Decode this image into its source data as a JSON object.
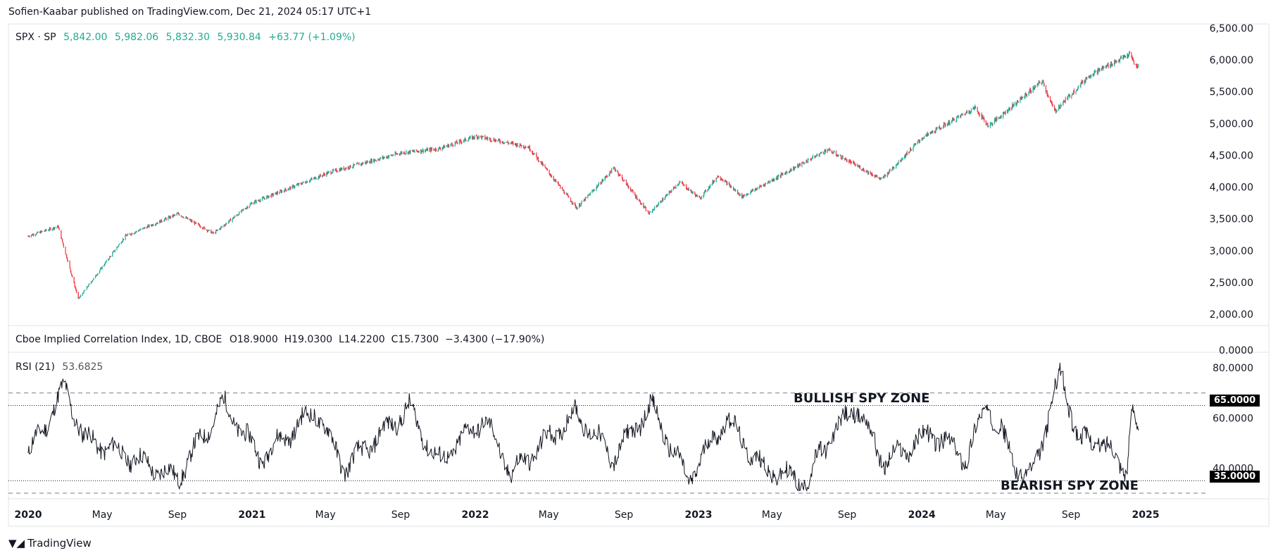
{
  "attribution": "Sofien-Kaabar published on TradingView.com, Dec 21, 2024 05:17 UTC+1",
  "main_legend": {
    "symbol": "SPX · SP",
    "open": "5,842.00",
    "high": "5,982.06",
    "low": "5,832.30",
    "close": "5,930.84",
    "change": "+63.77 (+1.09%)"
  },
  "indicator_legend": {
    "name": "Cboe Implied Correlation Index, 1D, CBOE",
    "values": "O18.9000  H19.0300  L14.2200  C15.7300  −3.4300 (−17.90%)"
  },
  "rsi_legend": {
    "name": "RSI (21)",
    "value": "53.6825"
  },
  "zones": {
    "bullish": "BULLISH SPY ZONE",
    "bearish": "BEARISH SPY ZONE"
  },
  "levels": {
    "upper": "65.0000",
    "lower": "35.0000"
  },
  "logo": "TradingView",
  "colors": {
    "up": "#22ab94",
    "down": "#f23645",
    "line": "#131722"
  },
  "chart_data": [
    {
      "type": "candlestick",
      "series_name": "SPX",
      "y_ticks": [
        "6,500.00",
        "6,000.00",
        "5,500.00",
        "5,000.00",
        "4,500.00",
        "4,000.00",
        "3,500.00",
        "3,000.00",
        "2,500.00",
        "2,000.00"
      ],
      "ylim": [
        1900,
        6500
      ],
      "x": [
        "2020-01-01",
        "2020-02-19",
        "2020-03-23",
        "2020-06-08",
        "2020-09-02",
        "2020-10-30",
        "2021-01-01",
        "2021-05-07",
        "2021-09-02",
        "2021-11-01",
        "2022-01-03",
        "2022-03-29",
        "2022-06-16",
        "2022-08-16",
        "2022-10-12",
        "2022-12-01",
        "2023-01-03",
        "2023-02-02",
        "2023-03-13",
        "2023-07-31",
        "2023-10-27",
        "2024-01-01",
        "2024-03-28",
        "2024-04-19",
        "2024-07-16",
        "2024-08-05",
        "2024-10-01",
        "2024-12-06",
        "2024-12-18",
        "2024-12-20"
      ],
      "close": [
        3230,
        3380,
        2240,
        3230,
        3580,
        3270,
        3750,
        4230,
        4540,
        4600,
        4800,
        4630,
        3670,
        4300,
        3580,
        4080,
        3820,
        4180,
        3850,
        4590,
        4120,
        4770,
        5250,
        4960,
        5670,
        5190,
        5760,
        6090,
        5870,
        5930
      ]
    },
    {
      "type": "line",
      "series_name": "RSI (21)",
      "y_ticks": [
        "80.0000",
        "60.0000",
        "40.0000"
      ],
      "ylim": [
        30,
        84
      ],
      "levels": [
        35,
        65
      ],
      "bands": [
        30,
        70
      ],
      "x": [
        "2020-01-01",
        "2020-03-01",
        "2020-04-01",
        "2020-06-01",
        "2020-09-01",
        "2020-11-15",
        "2021-01-15",
        "2021-04-15",
        "2021-06-01",
        "2021-09-15",
        "2021-11-01",
        "2022-01-15",
        "2022-03-01",
        "2022-06-15",
        "2022-08-15",
        "2022-10-15",
        "2022-12-15",
        "2023-02-15",
        "2023-04-15",
        "2023-06-30",
        "2023-07-20",
        "2023-09-15",
        "2023-11-01",
        "2024-01-15",
        "2024-03-15",
        "2024-04-15",
        "2024-06-15",
        "2024-07-01",
        "2024-08-15",
        "2024-09-15",
        "2024-10-15",
        "2024-12-01",
        "2024-12-10",
        "2024-12-20"
      ],
      "values": [
        45,
        72,
        52,
        46,
        36,
        66,
        44,
        63,
        40,
        64,
        42,
        60,
        38,
        62,
        44,
        65,
        35,
        60,
        40,
        34,
        47,
        65,
        42,
        54,
        44,
        66,
        36,
        38,
        78,
        50,
        52,
        40,
        64,
        53.7
      ]
    }
  ],
  "x_ticks": [
    {
      "label": "2020",
      "date": "2020-01-01",
      "bold": true
    },
    {
      "label": "May",
      "date": "2020-05-01",
      "bold": false
    },
    {
      "label": "Sep",
      "date": "2020-09-01",
      "bold": false
    },
    {
      "label": "2021",
      "date": "2021-01-01",
      "bold": true
    },
    {
      "label": "May",
      "date": "2021-05-01",
      "bold": false
    },
    {
      "label": "Sep",
      "date": "2021-09-01",
      "bold": false
    },
    {
      "label": "2022",
      "date": "2022-01-01",
      "bold": true
    },
    {
      "label": "May",
      "date": "2022-05-01",
      "bold": false
    },
    {
      "label": "Sep",
      "date": "2022-09-01",
      "bold": false
    },
    {
      "label": "2023",
      "date": "2023-01-01",
      "bold": true
    },
    {
      "label": "May",
      "date": "2023-05-01",
      "bold": false
    },
    {
      "label": "Sep",
      "date": "2023-09-01",
      "bold": false
    },
    {
      "label": "2024",
      "date": "2024-01-01",
      "bold": true
    },
    {
      "label": "May",
      "date": "2024-05-01",
      "bold": false
    },
    {
      "label": "Sep",
      "date": "2024-09-01",
      "bold": false
    },
    {
      "label": "2025",
      "date": "2025-01-01",
      "bold": true
    }
  ],
  "correlation_axis_tick": "0.0000"
}
